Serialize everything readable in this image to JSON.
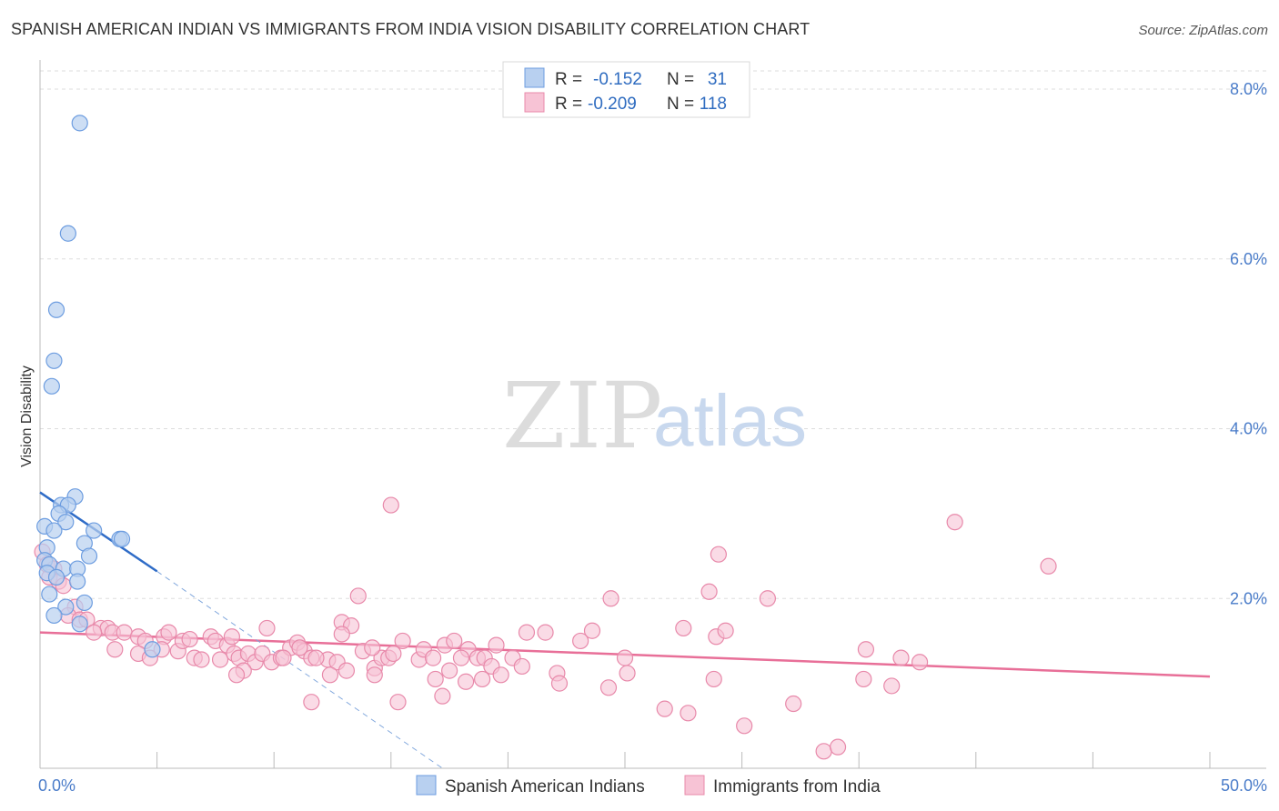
{
  "title": "SPANISH AMERICAN INDIAN VS IMMIGRANTS FROM INDIA VISION DISABILITY CORRELATION CHART",
  "source": "Source: ZipAtlas.com",
  "watermark": {
    "zip": "ZIP",
    "atlas": "atlas"
  },
  "colors": {
    "blue_fill": "#b8d0f0",
    "blue_stroke": "#6d9de0",
    "blue_line": "#2f6cc7",
    "pink_fill": "#f7c3d5",
    "pink_stroke": "#e889aa",
    "pink_line": "#e86f98",
    "grid": "#dddddd",
    "tick_text": "#4a7cc9"
  },
  "legend": {
    "rows": [
      {
        "r_label": "R =",
        "r_value": "-0.152",
        "n_label": "N =",
        "n_value": "31"
      },
      {
        "r_label": "R =",
        "r_value": "-0.209",
        "n_label": "N =",
        "n_value": "118"
      }
    ]
  },
  "chart_data": {
    "type": "scatter",
    "title": "SPANISH AMERICAN INDIAN VS IMMIGRANTS FROM INDIA VISION DISABILITY CORRELATION CHART",
    "xlabel": "",
    "ylabel": "Vision Disability",
    "xlim": [
      0,
      50
    ],
    "ylim": [
      0,
      8.3
    ],
    "x_tick_labels": [
      "0.0%",
      "50.0%"
    ],
    "y_ticks": [
      2.0,
      4.0,
      6.0,
      8.0
    ],
    "y_tick_labels": [
      "2.0%",
      "4.0%",
      "6.0%",
      "8.0%"
    ],
    "series": [
      {
        "name": "Spanish American Indians",
        "points": [
          [
            1.7,
            7.6
          ],
          [
            1.2,
            6.3
          ],
          [
            0.7,
            5.4
          ],
          [
            0.6,
            4.8
          ],
          [
            0.5,
            4.5
          ],
          [
            1.5,
            3.2
          ],
          [
            0.9,
            3.1
          ],
          [
            1.2,
            3.1
          ],
          [
            0.8,
            3.0
          ],
          [
            1.1,
            2.9
          ],
          [
            0.2,
            2.85
          ],
          [
            0.6,
            2.8
          ],
          [
            2.3,
            2.8
          ],
          [
            3.4,
            2.7
          ],
          [
            3.5,
            2.7
          ],
          [
            1.9,
            2.65
          ],
          [
            0.3,
            2.6
          ],
          [
            2.1,
            2.5
          ],
          [
            0.2,
            2.45
          ],
          [
            0.4,
            2.4
          ],
          [
            1.0,
            2.35
          ],
          [
            1.6,
            2.35
          ],
          [
            0.3,
            2.3
          ],
          [
            0.7,
            2.25
          ],
          [
            1.6,
            2.2
          ],
          [
            0.4,
            2.05
          ],
          [
            1.9,
            1.95
          ],
          [
            1.1,
            1.9
          ],
          [
            0.6,
            1.8
          ],
          [
            1.7,
            1.7
          ],
          [
            4.8,
            1.4
          ]
        ],
        "trend_solid": [
          [
            0,
            3.25
          ],
          [
            5,
            2.32
          ]
        ],
        "trend_dashed": [
          [
            5,
            2.32
          ],
          [
            17.2,
            0.0
          ]
        ]
      },
      {
        "name": "Immigrants from India",
        "points": [
          [
            0.1,
            2.55
          ],
          [
            0.3,
            2.4
          ],
          [
            0.6,
            2.35
          ],
          [
            0.4,
            2.25
          ],
          [
            0.8,
            2.2
          ],
          [
            1.0,
            2.15
          ],
          [
            1.5,
            1.9
          ],
          [
            1.2,
            1.8
          ],
          [
            1.7,
            1.75
          ],
          [
            2.0,
            1.75
          ],
          [
            2.6,
            1.65
          ],
          [
            2.9,
            1.65
          ],
          [
            3.1,
            1.6
          ],
          [
            2.3,
            1.6
          ],
          [
            3.6,
            1.6
          ],
          [
            4.2,
            1.55
          ],
          [
            4.5,
            1.5
          ],
          [
            5.3,
            1.55
          ],
          [
            5.5,
            1.6
          ],
          [
            3.2,
            1.4
          ],
          [
            4.2,
            1.35
          ],
          [
            4.7,
            1.3
          ],
          [
            5.2,
            1.4
          ],
          [
            5.9,
            1.38
          ],
          [
            6.1,
            1.5
          ],
          [
            6.4,
            1.52
          ],
          [
            6.6,
            1.3
          ],
          [
            6.9,
            1.28
          ],
          [
            7.3,
            1.55
          ],
          [
            7.7,
            1.28
          ],
          [
            7.5,
            1.5
          ],
          [
            8.0,
            1.45
          ],
          [
            8.3,
            1.35
          ],
          [
            8.5,
            1.3
          ],
          [
            8.2,
            1.55
          ],
          [
            8.9,
            1.35
          ],
          [
            9.2,
            1.25
          ],
          [
            9.5,
            1.35
          ],
          [
            9.9,
            1.25
          ],
          [
            10.3,
            1.3
          ],
          [
            10.7,
            1.42
          ],
          [
            11.0,
            1.48
          ],
          [
            11.3,
            1.38
          ],
          [
            8.7,
            1.15
          ],
          [
            8.4,
            1.1
          ],
          [
            9.7,
            1.65
          ],
          [
            10.4,
            1.3
          ],
          [
            11.1,
            1.42
          ],
          [
            11.6,
            1.3
          ],
          [
            12.3,
            1.28
          ],
          [
            11.8,
            1.3
          ],
          [
            12.7,
            1.25
          ],
          [
            12.4,
            1.1
          ],
          [
            12.9,
            1.72
          ],
          [
            13.3,
            1.68
          ],
          [
            12.9,
            1.58
          ],
          [
            13.1,
            1.15
          ],
          [
            13.8,
            1.38
          ],
          [
            14.3,
            1.18
          ],
          [
            14.6,
            1.3
          ],
          [
            14.9,
            1.3
          ],
          [
            15.1,
            1.35
          ],
          [
            15.5,
            1.5
          ],
          [
            14.2,
            1.42
          ],
          [
            16.2,
            1.28
          ],
          [
            16.4,
            1.4
          ],
          [
            16.8,
            1.3
          ],
          [
            17.3,
            1.45
          ],
          [
            17.7,
            1.5
          ],
          [
            18.3,
            1.4
          ],
          [
            18.7,
            1.3
          ],
          [
            19.0,
            1.3
          ],
          [
            19.3,
            1.2
          ],
          [
            19.5,
            1.45
          ],
          [
            18.0,
            1.3
          ],
          [
            13.6,
            2.03
          ],
          [
            11.6,
            0.78
          ],
          [
            14.3,
            1.1
          ],
          [
            17.5,
            1.15
          ],
          [
            15.3,
            0.78
          ],
          [
            17.2,
            0.85
          ],
          [
            16.9,
            1.05
          ],
          [
            18.2,
            1.02
          ],
          [
            18.9,
            1.05
          ],
          [
            19.7,
            1.1
          ],
          [
            20.2,
            1.3
          ],
          [
            20.6,
            1.2
          ],
          [
            20.8,
            1.6
          ],
          [
            21.6,
            1.6
          ],
          [
            22.1,
            1.12
          ],
          [
            22.2,
            1.0
          ],
          [
            23.1,
            1.5
          ],
          [
            23.6,
            1.62
          ],
          [
            24.4,
            2.0
          ],
          [
            24.3,
            0.95
          ],
          [
            25.0,
            1.3
          ],
          [
            25.1,
            1.12
          ],
          [
            26.7,
            0.7
          ],
          [
            27.5,
            1.65
          ],
          [
            28.6,
            2.08
          ],
          [
            28.8,
            1.05
          ],
          [
            29.0,
            2.52
          ],
          [
            28.9,
            1.55
          ],
          [
            29.3,
            1.62
          ],
          [
            15.0,
            3.1
          ],
          [
            31.1,
            2.0
          ],
          [
            30.1,
            0.5
          ],
          [
            27.7,
            0.65
          ],
          [
            32.2,
            0.76
          ],
          [
            33.5,
            0.2
          ],
          [
            34.1,
            0.25
          ],
          [
            35.2,
            1.05
          ],
          [
            35.3,
            1.4
          ],
          [
            36.4,
            0.97
          ],
          [
            36.8,
            1.3
          ],
          [
            37.6,
            1.25
          ],
          [
            39.1,
            2.9
          ],
          [
            43.1,
            2.38
          ]
        ],
        "trend_solid": [
          [
            0,
            1.6
          ],
          [
            50,
            1.08
          ]
        ]
      }
    ],
    "legend_position": "top-center",
    "grid": true
  }
}
